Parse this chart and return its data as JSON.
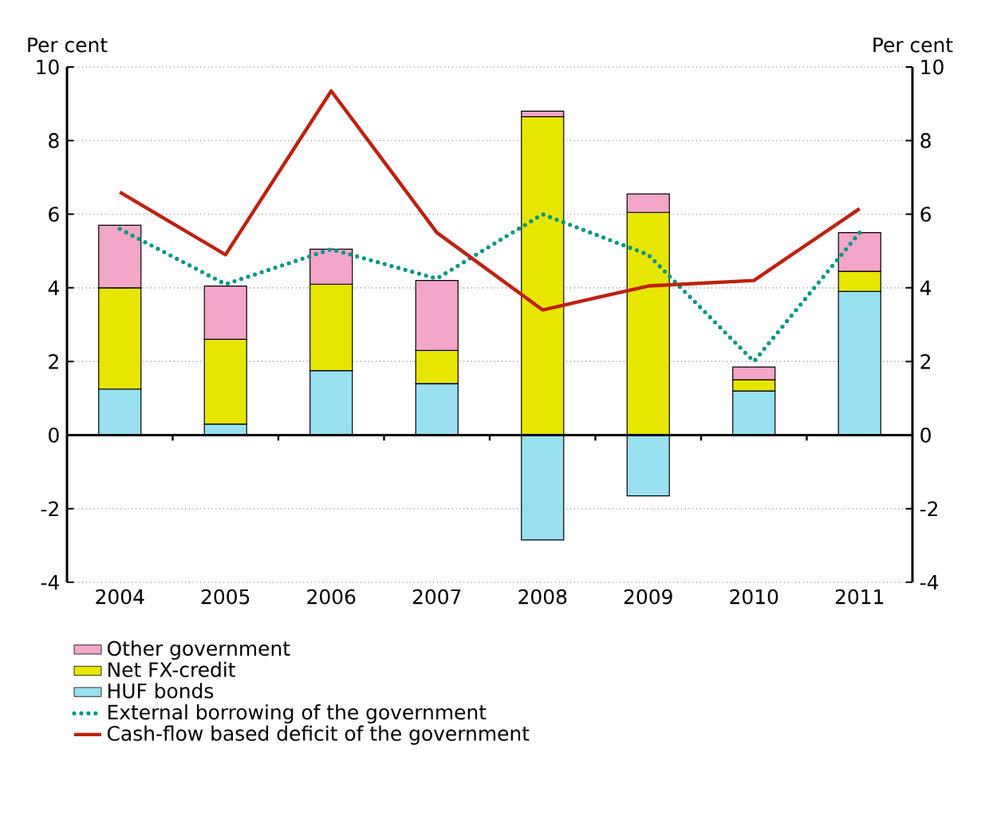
{
  "chart_data": {
    "type": "bar",
    "stacked": true,
    "ylabel": "Per cent",
    "y2label": "Per cent",
    "categories": [
      "2004",
      "2005",
      "2006",
      "2007",
      "2008",
      "2009",
      "2010",
      "2011"
    ],
    "series": [
      {
        "name": "HUF bonds",
        "color": "#99e0f0",
        "values": [
          1.25,
          0.3,
          1.75,
          1.4,
          -2.85,
          -1.65,
          1.2,
          3.9
        ]
      },
      {
        "name": "Net FX-credit",
        "color": "#e6e600",
        "values": [
          2.75,
          2.3,
          2.35,
          0.9,
          8.65,
          6.05,
          0.3,
          0.55
        ]
      },
      {
        "name": "Other government",
        "color": "#f4a6c8",
        "values": [
          1.7,
          1.45,
          0.95,
          1.9,
          0.15,
          0.5,
          0.35,
          1.05
        ]
      },
      {
        "name": "External borrowing of the government",
        "type": "line",
        "line_style": "dotted",
        "color": "#009688",
        "values": [
          5.6,
          4.1,
          5.05,
          4.25,
          6.0,
          4.9,
          2.0,
          5.5
        ]
      },
      {
        "name": "Cash-flow based deficit of the government",
        "type": "line",
        "line_style": "solid",
        "color": "#c0200c",
        "values": [
          6.6,
          4.9,
          9.35,
          5.5,
          3.4,
          4.05,
          4.2,
          6.15
        ]
      }
    ],
    "ylim": [
      -4,
      10
    ],
    "yticks": [
      -4,
      -2,
      0,
      2,
      4,
      6,
      8,
      10
    ],
    "y2lim": [
      -4,
      10
    ],
    "y2ticks": [
      -4,
      -2,
      0,
      2,
      4,
      6,
      8,
      10
    ],
    "grid": "y",
    "legend": "bottom"
  }
}
